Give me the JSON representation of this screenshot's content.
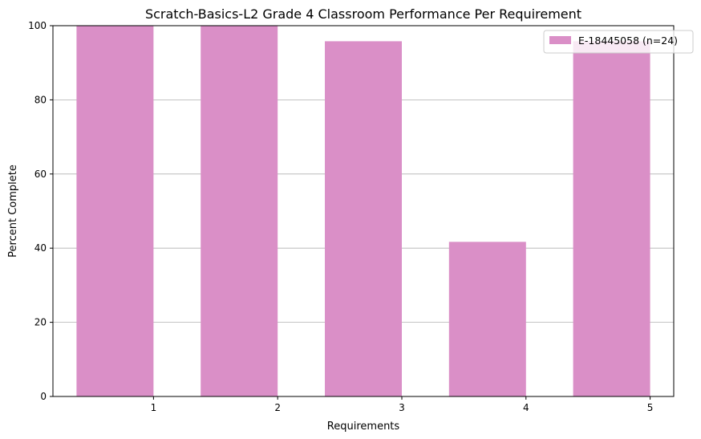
{
  "chart_data": {
    "type": "bar",
    "title": "Scratch-Basics-L2 Grade 4 Classroom Performance Per Requirement",
    "xlabel": "Requirements",
    "ylabel": "Percent Complete",
    "categories": [
      "1",
      "2",
      "3",
      "4",
      "5"
    ],
    "series": [
      {
        "name": "E-18445058 (n=24)",
        "values": [
          100,
          100,
          95.8,
          41.7,
          95.8
        ],
        "color": "#da8fc7"
      }
    ],
    "ylim": [
      0,
      100
    ],
    "yticks": [
      0,
      20,
      40,
      60,
      80,
      100
    ],
    "grid": "y-major",
    "legend": "top-right"
  }
}
